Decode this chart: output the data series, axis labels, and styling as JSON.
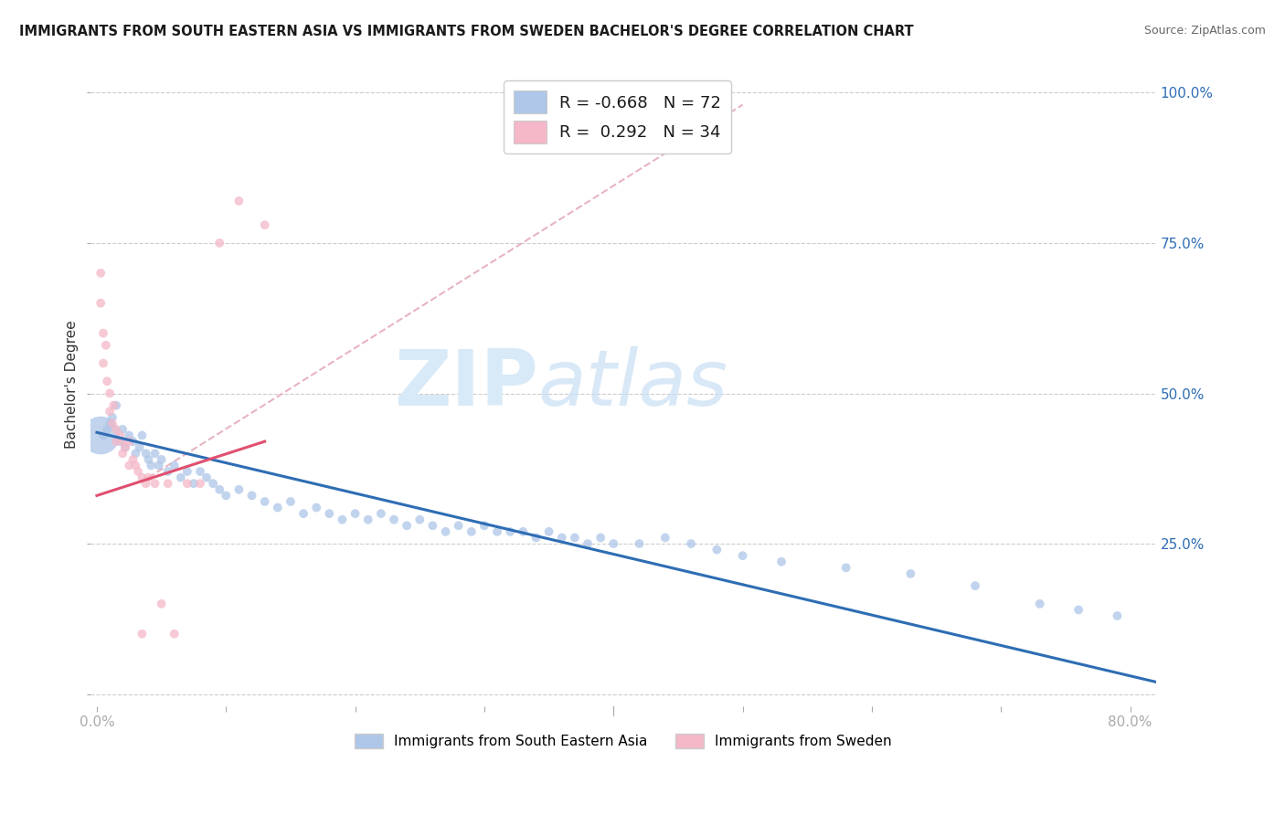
{
  "title": "IMMIGRANTS FROM SOUTH EASTERN ASIA VS IMMIGRANTS FROM SWEDEN BACHELOR'S DEGREE CORRELATION CHART",
  "source": "Source: ZipAtlas.com",
  "ylabel": "Bachelor's Degree",
  "ylim": [
    -0.02,
    1.05
  ],
  "xlim": [
    -0.005,
    0.82
  ],
  "R_blue": -0.668,
  "N_blue": 72,
  "R_pink": 0.292,
  "N_pink": 34,
  "color_blue": "#aec6e8",
  "color_pink": "#f4b8c8",
  "line_blue": "#2e6db4",
  "line_pink": "#e05070",
  "line_dashed_color": "#e8b4c0",
  "watermark_color": "#d8eaf8",
  "legend_label_blue": "Immigrants from South Eastern Asia",
  "legend_label_pink": "Immigrants from Sweden",
  "blue_x": [
    0.005,
    0.008,
    0.01,
    0.012,
    0.015,
    0.018,
    0.02,
    0.022,
    0.025,
    0.028,
    0.03,
    0.033,
    0.035,
    0.038,
    0.04,
    0.042,
    0.045,
    0.048,
    0.05,
    0.055,
    0.06,
    0.065,
    0.07,
    0.075,
    0.08,
    0.085,
    0.09,
    0.095,
    0.1,
    0.11,
    0.12,
    0.13,
    0.14,
    0.15,
    0.16,
    0.17,
    0.18,
    0.19,
    0.2,
    0.21,
    0.22,
    0.23,
    0.24,
    0.25,
    0.26,
    0.27,
    0.28,
    0.29,
    0.3,
    0.31,
    0.32,
    0.33,
    0.34,
    0.35,
    0.36,
    0.37,
    0.38,
    0.39,
    0.4,
    0.42,
    0.44,
    0.46,
    0.48,
    0.5,
    0.53,
    0.58,
    0.63,
    0.68,
    0.73,
    0.76,
    0.79,
    0.003
  ],
  "blue_y": [
    0.43,
    0.44,
    0.45,
    0.46,
    0.48,
    0.42,
    0.44,
    0.41,
    0.43,
    0.42,
    0.4,
    0.41,
    0.43,
    0.4,
    0.39,
    0.38,
    0.4,
    0.38,
    0.39,
    0.37,
    0.38,
    0.36,
    0.37,
    0.35,
    0.37,
    0.36,
    0.35,
    0.34,
    0.33,
    0.34,
    0.33,
    0.32,
    0.31,
    0.32,
    0.3,
    0.31,
    0.3,
    0.29,
    0.3,
    0.29,
    0.3,
    0.29,
    0.28,
    0.29,
    0.28,
    0.27,
    0.28,
    0.27,
    0.28,
    0.27,
    0.27,
    0.27,
    0.26,
    0.27,
    0.26,
    0.26,
    0.25,
    0.26,
    0.25,
    0.25,
    0.26,
    0.25,
    0.24,
    0.23,
    0.22,
    0.21,
    0.2,
    0.18,
    0.15,
    0.14,
    0.13,
    0.43
  ],
  "blue_size": [
    50,
    50,
    50,
    50,
    50,
    50,
    50,
    50,
    50,
    50,
    50,
    50,
    50,
    50,
    50,
    50,
    50,
    50,
    50,
    50,
    50,
    50,
    50,
    50,
    50,
    50,
    50,
    50,
    50,
    50,
    50,
    50,
    50,
    50,
    50,
    50,
    50,
    50,
    50,
    50,
    50,
    50,
    50,
    50,
    50,
    50,
    50,
    50,
    50,
    50,
    50,
    50,
    50,
    50,
    50,
    50,
    50,
    50,
    50,
    50,
    50,
    50,
    50,
    50,
    50,
    50,
    50,
    50,
    50,
    50,
    50,
    900
  ],
  "pink_x": [
    0.003,
    0.005,
    0.005,
    0.007,
    0.008,
    0.01,
    0.01,
    0.012,
    0.013,
    0.015,
    0.015,
    0.018,
    0.02,
    0.02,
    0.022,
    0.025,
    0.025,
    0.028,
    0.03,
    0.032,
    0.035,
    0.038,
    0.04,
    0.045,
    0.05,
    0.055,
    0.06,
    0.07,
    0.08,
    0.095,
    0.11,
    0.13,
    0.003,
    0.035
  ],
  "pink_y": [
    0.65,
    0.6,
    0.55,
    0.58,
    0.52,
    0.5,
    0.47,
    0.45,
    0.48,
    0.44,
    0.42,
    0.43,
    0.42,
    0.4,
    0.41,
    0.38,
    0.42,
    0.39,
    0.38,
    0.37,
    0.36,
    0.35,
    0.36,
    0.35,
    0.15,
    0.35,
    0.1,
    0.35,
    0.35,
    0.75,
    0.82,
    0.78,
    0.7,
    0.1
  ],
  "pink_size": [
    50,
    50,
    50,
    50,
    50,
    50,
    50,
    50,
    50,
    50,
    50,
    50,
    50,
    50,
    50,
    50,
    50,
    50,
    50,
    50,
    50,
    50,
    50,
    50,
    50,
    50,
    50,
    50,
    50,
    50,
    50,
    50,
    50,
    50
  ],
  "blue_trend_x": [
    0.0,
    0.82
  ],
  "blue_trend_y": [
    0.435,
    0.02
  ],
  "pink_trend_x": [
    0.0,
    0.13
  ],
  "pink_trend_y": [
    0.33,
    0.42
  ],
  "dashed_trend_x": [
    0.04,
    0.5
  ],
  "dashed_trend_y": [
    0.36,
    0.98
  ]
}
